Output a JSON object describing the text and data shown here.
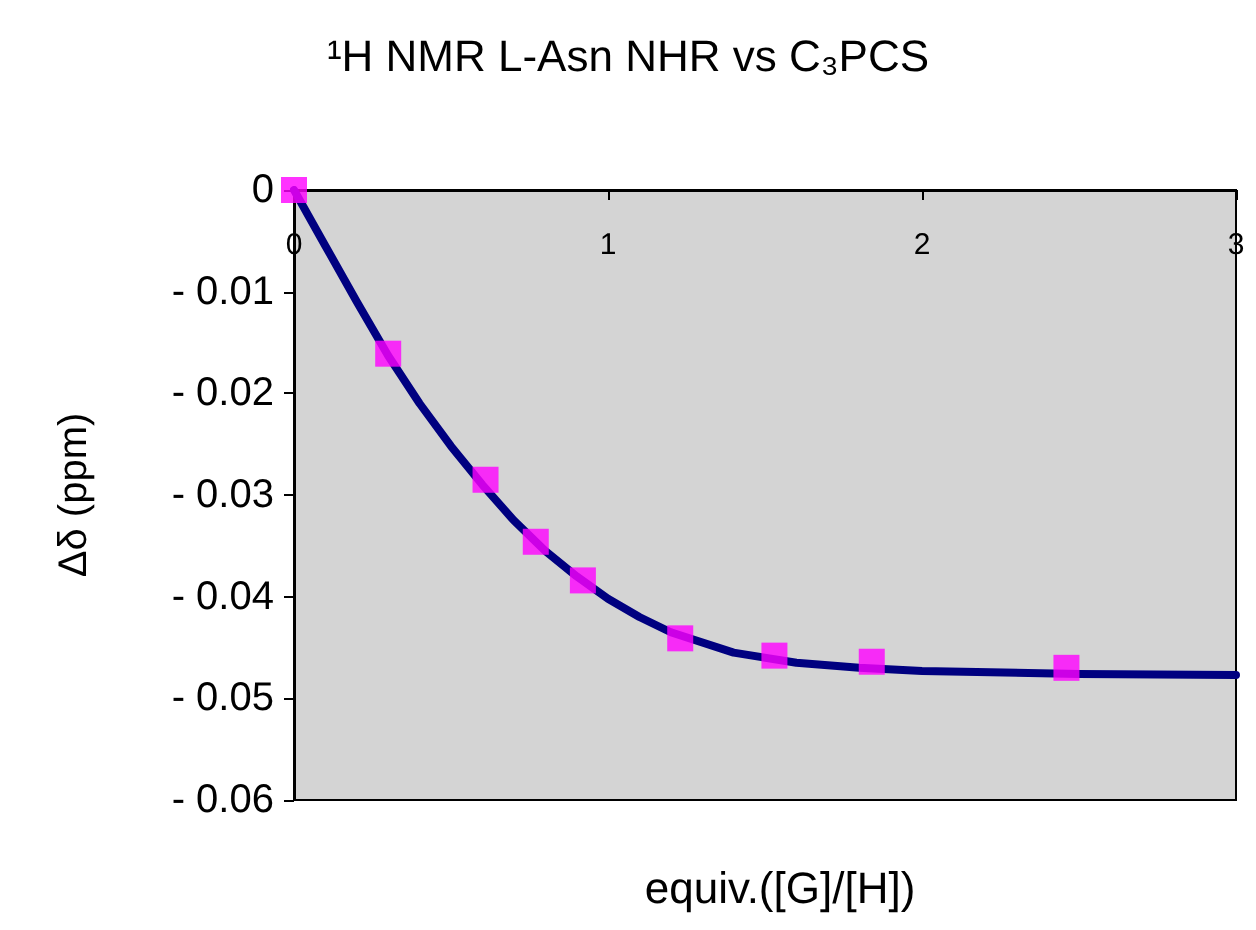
{
  "chart_data": {
    "type": "scatter",
    "title": "¹H NMR L-Asn NHR vs C₃PCS",
    "xlabel": "equiv.([G]/[H])",
    "ylabel": "Δδ (ppm)",
    "xlim": [
      0,
      3
    ],
    "xticks": [
      0,
      1,
      2,
      3
    ],
    "ylim": [
      -0.06,
      0
    ],
    "yticks": [
      -0.06,
      -0.05,
      -0.04,
      -0.03,
      -0.02,
      -0.01,
      0
    ],
    "grid": false,
    "marker": "square",
    "series": [
      {
        "type": "line",
        "color": "#000080",
        "marker": "none",
        "line_style": "solid",
        "x": [
          0,
          0.1,
          0.2,
          0.3,
          0.4,
          0.5,
          0.6,
          0.7,
          0.8,
          0.9,
          1.0,
          1.1,
          1.2,
          1.4,
          1.6,
          1.8,
          2.0,
          2.5,
          3.0
        ],
        "values": [
          0,
          -0.0055,
          -0.011,
          -0.0163,
          -0.021,
          -0.0252,
          -0.029,
          -0.0325,
          -0.0355,
          -0.038,
          -0.0402,
          -0.042,
          -0.0435,
          -0.0455,
          -0.0465,
          -0.047,
          -0.0473,
          -0.0476,
          -0.0477
        ]
      },
      {
        "type": "scatter",
        "color": "#ff00ff",
        "x": [
          0,
          0.3,
          0.61,
          0.77,
          0.92,
          1.23,
          1.53,
          1.84,
          2.46
        ],
        "values": [
          0,
          -0.0161,
          -0.0285,
          -0.0346,
          -0.0384,
          -0.0441,
          -0.0458,
          -0.0464,
          -0.047
        ]
      }
    ]
  }
}
